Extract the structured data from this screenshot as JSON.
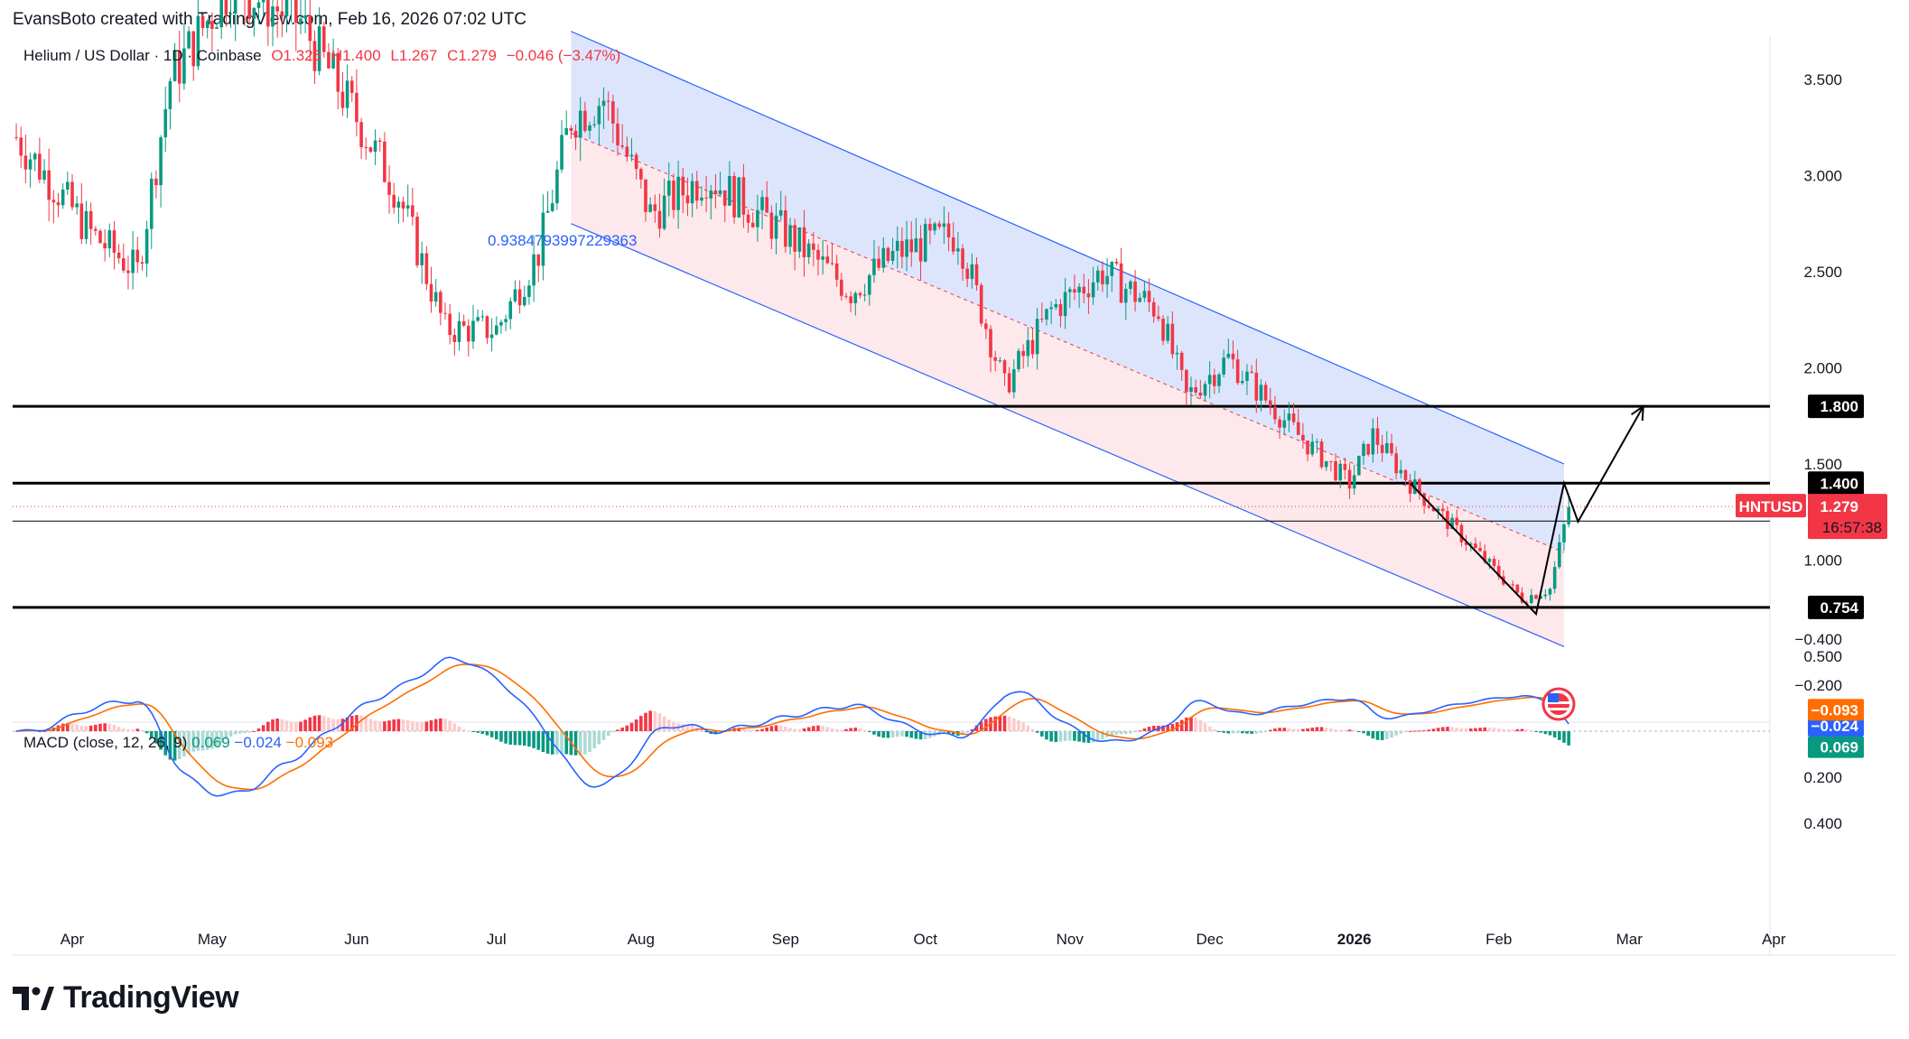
{
  "header": {
    "credit": "EvansBoto created with TradingView.com, Feb 16, 2026 07:02 UTC"
  },
  "legend": {
    "symbol": "Helium / US Dollar · 1D · Coinbase",
    "open": "O1.325",
    "high": "H1.400",
    "low": "L1.267",
    "close": "C1.279",
    "change": "−0.046 (−3.47%)"
  },
  "macd_legend": {
    "label": "MACD (close, 12, 26, 9)",
    "hist": "0.069",
    "macd": "−0.024",
    "signal": "−0.093"
  },
  "price_tag": {
    "ticker": "HNTUSD",
    "price": "1.279",
    "countdown": "16:57:38"
  },
  "channel_label": "0.9384793997229363",
  "footer": {
    "brand": "TradingView"
  },
  "colors": {
    "up": "#089981",
    "down": "#f23645",
    "macd_line": "#2962ff",
    "signal_line": "#ff6d00",
    "channel_upper_fill": "#dbe4fd",
    "channel_lower_fill": "#fde7ea"
  },
  "chart_data": {
    "type": "candlestick",
    "title": "Helium / US Dollar · 1D · Coinbase",
    "price_axis": {
      "ticks": [
        3.5,
        3.0,
        2.5,
        2.0,
        1.5,
        1.0,
        0.5
      ],
      "tick_labels": [
        "3.500",
        "3.000",
        "2.500",
        "2.000",
        "1.500",
        "1.000",
        "0.500"
      ],
      "range": [
        0.3,
        3.7
      ]
    },
    "time_axis": {
      "labels": [
        "Apr",
        "May",
        "Jun",
        "Jul",
        "Aug",
        "Sep",
        "Oct",
        "Nov",
        "Dec",
        "2026",
        "Feb",
        "Mar",
        "Apr"
      ]
    },
    "horizontal_levels": [
      {
        "value": 1.8,
        "label": "1.800"
      },
      {
        "value": 1.4,
        "label": "1.400"
      },
      {
        "value": 1.203,
        "label": "1.203"
      },
      {
        "value": 0.754,
        "label": "0.754"
      }
    ],
    "channel": {
      "upper": {
        "start": [
          "2025-07-17",
          3.75
        ],
        "end": [
          "2026-02-15",
          1.5
        ]
      },
      "middle": {
        "start": [
          "2025-07-17",
          3.22
        ],
        "end": [
          "2026-02-15",
          1.04
        ]
      },
      "lower": {
        "start": [
          "2025-07-17",
          2.75
        ],
        "end": [
          "2026-02-15",
          0.55
        ]
      }
    },
    "projection_path": [
      [
        "2026-01-13",
        1.4
      ],
      [
        "2026-02-09",
        0.72
      ],
      [
        "2026-02-15",
        1.4
      ],
      [
        "2026-02-18",
        1.2
      ],
      [
        "2026-03-04",
        1.8
      ]
    ],
    "close_series_approx": [
      {
        "date": "2025-03-20",
        "close": 3.2
      },
      {
        "date": "2025-04-05",
        "close": 2.7
      },
      {
        "date": "2025-04-15",
        "close": 2.5
      },
      {
        "date": "2025-04-22",
        "close": 3.5
      },
      {
        "date": "2025-05-05",
        "close": 4.0
      },
      {
        "date": "2025-05-20",
        "close": 3.8
      },
      {
        "date": "2025-06-01",
        "close": 3.3
      },
      {
        "date": "2025-06-10",
        "close": 2.9
      },
      {
        "date": "2025-06-20",
        "close": 2.2
      },
      {
        "date": "2025-07-01",
        "close": 2.2
      },
      {
        "date": "2025-07-10",
        "close": 2.6
      },
      {
        "date": "2025-07-17",
        "close": 3.3
      },
      {
        "date": "2025-07-24",
        "close": 3.4
      },
      {
        "date": "2025-08-03",
        "close": 2.8
      },
      {
        "date": "2025-08-15",
        "close": 3.0
      },
      {
        "date": "2025-09-01",
        "close": 2.7
      },
      {
        "date": "2025-09-15",
        "close": 2.4
      },
      {
        "date": "2025-09-25",
        "close": 2.6
      },
      {
        "date": "2025-10-08",
        "close": 2.7
      },
      {
        "date": "2025-10-18",
        "close": 1.9
      },
      {
        "date": "2025-10-28",
        "close": 2.3
      },
      {
        "date": "2025-11-08",
        "close": 2.5
      },
      {
        "date": "2025-11-20",
        "close": 2.3
      },
      {
        "date": "2025-11-26",
        "close": 1.85
      },
      {
        "date": "2025-12-05",
        "close": 2.05
      },
      {
        "date": "2025-12-20",
        "close": 1.65
      },
      {
        "date": "2025-12-31",
        "close": 1.4
      },
      {
        "date": "2026-01-05",
        "close": 1.65
      },
      {
        "date": "2026-01-13",
        "close": 1.4
      },
      {
        "date": "2026-01-25",
        "close": 1.1
      },
      {
        "date": "2026-02-06",
        "close": 0.8
      },
      {
        "date": "2026-02-12",
        "close": 0.85
      },
      {
        "date": "2026-02-16",
        "close": 1.279
      }
    ],
    "macd": {
      "params": "close, 12, 26, 9",
      "ticks": [
        0.4,
        0.2,
        -0.2,
        -0.4
      ],
      "tick_labels": [
        "0.400",
        "0.200",
        "−0.200",
        "−0.400"
      ],
      "last": {
        "histogram": 0.069,
        "macd": -0.024,
        "signal": -0.093
      }
    }
  }
}
